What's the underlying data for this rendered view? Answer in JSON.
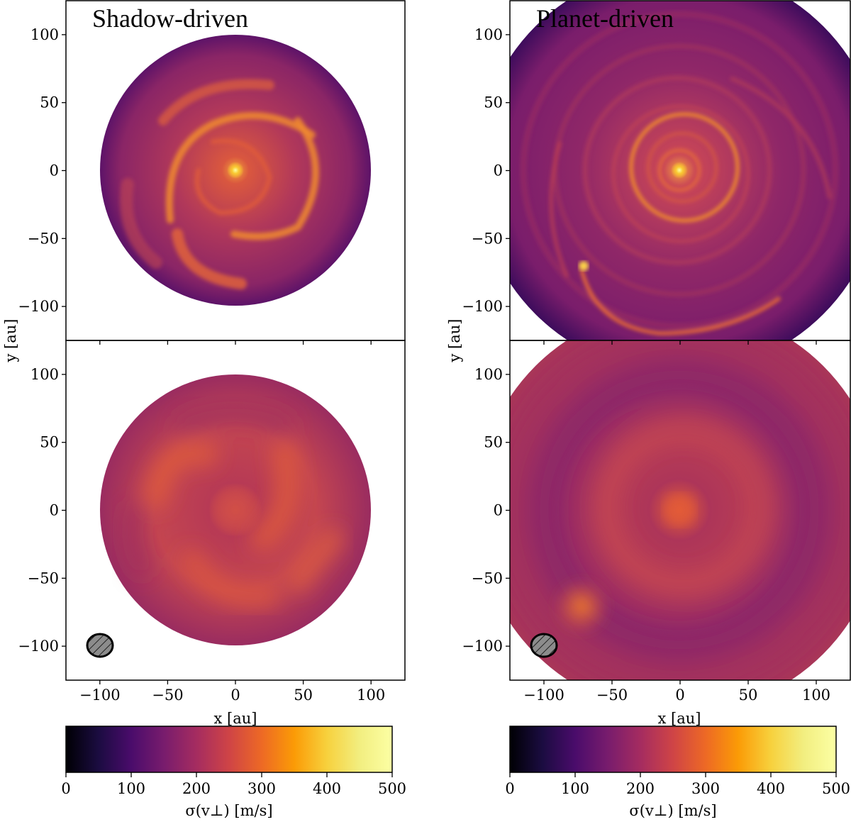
{
  "figure": {
    "columns": [
      {
        "title": "Shadow-driven"
      },
      {
        "title": "Planet-driven"
      }
    ],
    "ylabel": "y [au]",
    "xlabel": "x [au]",
    "colorbar_label": "σ(v⊥) [m/s]"
  },
  "chart_data": {
    "type": "heatmap",
    "description_of_layout": "2x2 grid of disk velocity dispersion maps",
    "panels": [
      {
        "column": "Shadow-driven",
        "row": "top",
        "disk_outer_radius_au": 100,
        "pattern": "spiral arms",
        "beam_shown": false
      },
      {
        "column": "Planet-driven",
        "row": "top",
        "disk_outer_radius_au": 150,
        "pattern": "concentric rings with planet wake",
        "planet_position_au": [
          -70,
          -70
        ],
        "beam_shown": false
      },
      {
        "column": "Shadow-driven",
        "row": "bottom",
        "disk_outer_radius_au": 100,
        "pattern": "smoothed spiral arms",
        "beam_shown": true,
        "beam_center_au": [
          -100,
          -100
        ]
      },
      {
        "column": "Planet-driven",
        "row": "bottom",
        "disk_outer_radius_au": 150,
        "pattern": "smoothed rings",
        "beam_shown": true,
        "beam_center_au": [
          -100,
          -100
        ]
      }
    ],
    "xlim": [
      -125,
      125
    ],
    "ylim": [
      -125,
      125
    ],
    "xticks": [
      -100,
      -50,
      0,
      50,
      100
    ],
    "yticks": [
      -100,
      -50,
      0,
      50,
      100
    ],
    "xtick_labels": [
      "−100",
      "−50",
      "0",
      "50",
      "100"
    ],
    "ytick_labels": [
      "−100",
      "−50",
      "0",
      "50",
      "100"
    ],
    "colorbar": {
      "colormap": "inferno",
      "range": [
        0,
        500
      ],
      "ticks": [
        0,
        100,
        200,
        300,
        400,
        500
      ],
      "tick_labels": [
        "0",
        "100",
        "200",
        "300",
        "400",
        "500"
      ]
    }
  }
}
